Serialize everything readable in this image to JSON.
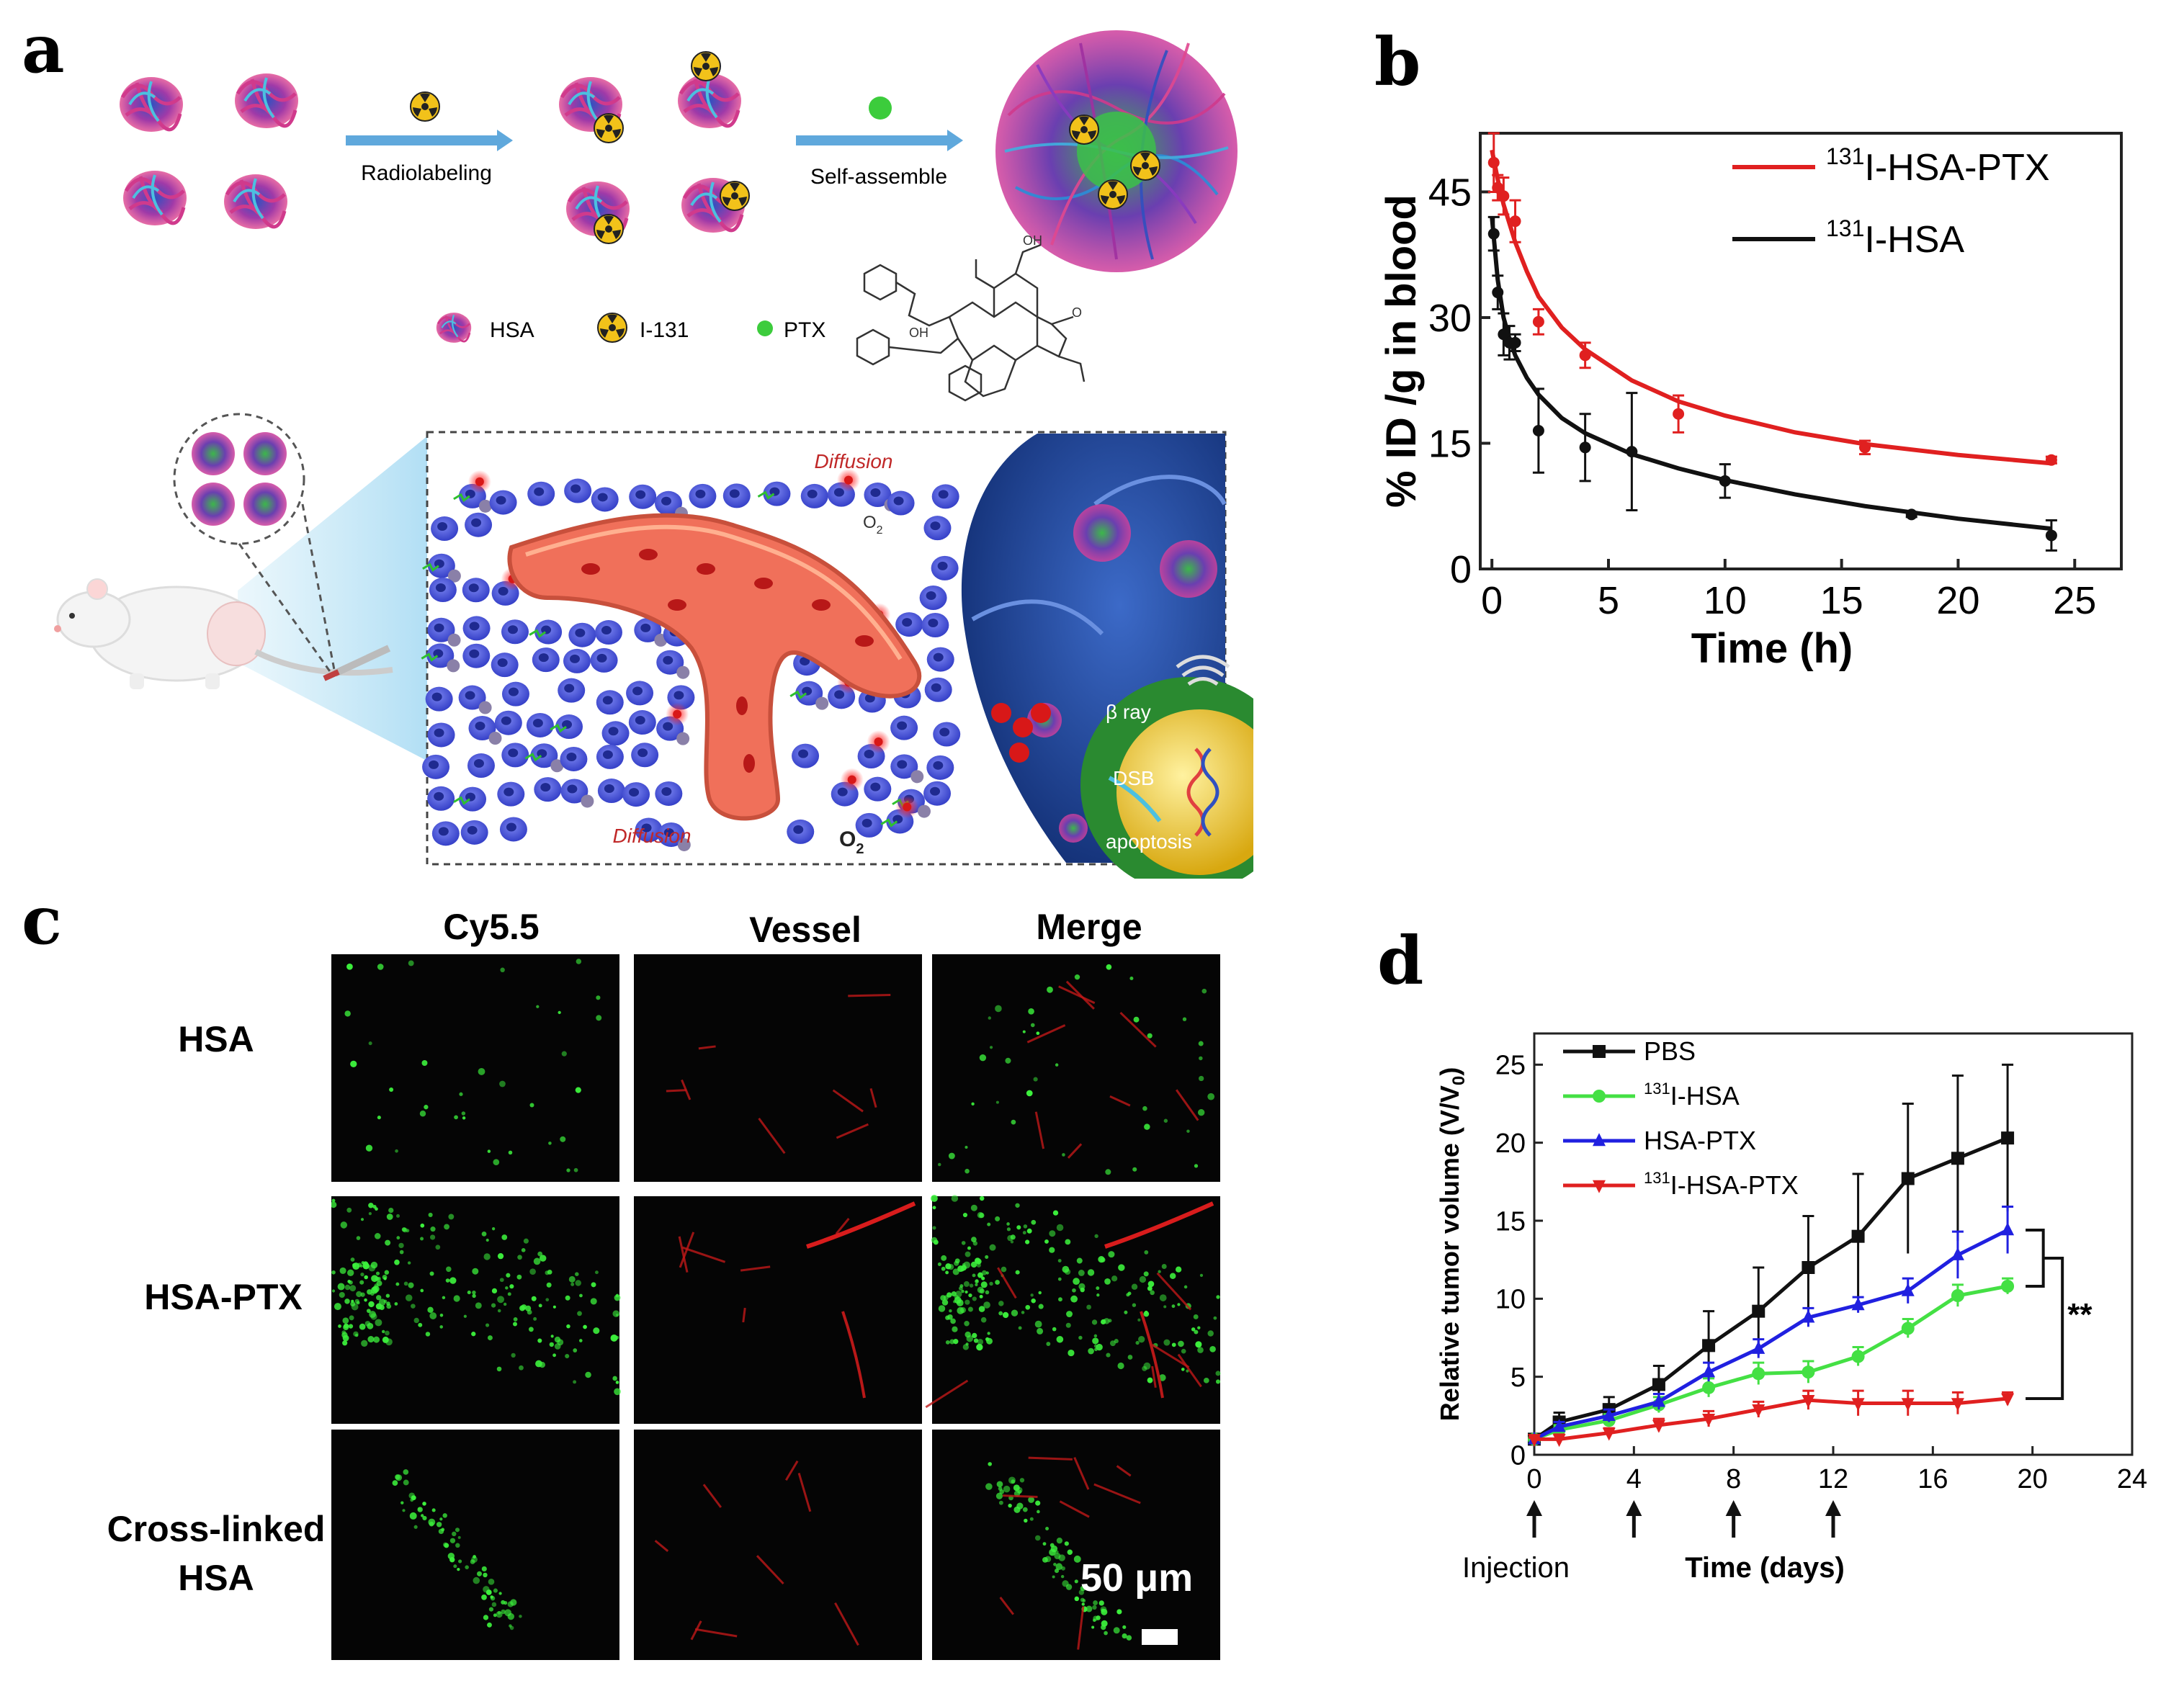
{
  "panels": {
    "a": "a",
    "b": "b",
    "c": "c",
    "d": "d"
  },
  "schematic": {
    "radiolabeling": "Radiolabeling",
    "self_assemble": "Self-assemble",
    "legend": [
      "HSA",
      "I-131",
      "PTX"
    ],
    "diffusion_top": "Diffusion",
    "diffusion_bottom": "Diffusion",
    "o2_label": "O",
    "o2_sub": "2",
    "beta_ray": "β ray",
    "dsb": "DSB",
    "apoptosis": "apoptosis",
    "colors": {
      "arrow": "#5fa8dc",
      "vessel": "#e8604c",
      "cell": "#4a55d8",
      "nucleus": "#e8c020",
      "tissue_bg": "#2a4a9c"
    }
  },
  "microscopy": {
    "columns": [
      "Cy5.5",
      "Vessel",
      "Merge"
    ],
    "rows": [
      {
        "label": "HSA"
      },
      {
        "label": "HSA-PTX"
      },
      {
        "label_line1": "Cross-linked",
        "label_line2": "HSA"
      }
    ],
    "scale_bar": "50 μm"
  },
  "chart_data": [
    {
      "panel": "b",
      "type": "line",
      "title": "",
      "xlabel": "Time (h)",
      "ylabel": "% ID /g in blood",
      "xlim": [
        -0.5,
        27
      ],
      "ylim": [
        0,
        52
      ],
      "xticks": [
        0,
        5,
        10,
        15,
        20,
        25
      ],
      "yticks": [
        0,
        15,
        30,
        45
      ],
      "legend_position": "top-right",
      "series": [
        {
          "name_sup": "131",
          "name_rest": "I-HSA-PTX",
          "color": "#e02020",
          "x": [
            0.08,
            0.25,
            0.5,
            1,
            2,
            4,
            8,
            16,
            24
          ],
          "y": [
            48.5,
            45.5,
            44.5,
            41.5,
            29.5,
            25.5,
            18.5,
            14.5,
            13
          ],
          "err": [
            3.5,
            1.5,
            2.2,
            2.5,
            1.5,
            1.5,
            2.2,
            0.8,
            0.4
          ],
          "fit_x": [
            0,
            0.25,
            0.5,
            1,
            1.5,
            2,
            3,
            4,
            6,
            8,
            10,
            13,
            16,
            20,
            24
          ],
          "fit_y": [
            50,
            46.5,
            43.5,
            39,
            35.5,
            32.5,
            28.8,
            26.2,
            22.5,
            20,
            18.3,
            16.3,
            14.9,
            13.6,
            12.6
          ]
        },
        {
          "name_sup": "131",
          "name_rest": "I-HSA",
          "color": "#111111",
          "x": [
            0.08,
            0.25,
            0.5,
            0.75,
            1,
            2,
            4,
            6,
            10,
            18,
            24
          ],
          "y": [
            40,
            33,
            28,
            27,
            27,
            16.5,
            14.5,
            14,
            10.5,
            6.5,
            4
          ],
          "err": [
            2,
            2,
            2.5,
            2,
            1,
            5,
            4,
            7,
            2,
            0.3,
            1.8
          ],
          "fit_x": [
            0,
            0.25,
            0.5,
            0.75,
            1,
            1.5,
            2,
            3,
            4,
            6,
            8,
            10,
            13,
            16,
            20,
            24
          ],
          "fit_y": [
            42,
            34.5,
            30,
            27.5,
            25.5,
            22.8,
            20.8,
            18,
            16.2,
            13.7,
            12,
            10.6,
            8.9,
            7.5,
            6,
            4.8
          ]
        }
      ]
    },
    {
      "panel": "d",
      "type": "line",
      "title": "",
      "xlabel": "Time (days)",
      "ylabel": "Relative tumor volume (V/V",
      "ylabel_sub": "0",
      "ylabel_end": ")",
      "xlim": [
        0,
        24
      ],
      "ylim": [
        0,
        27
      ],
      "xticks": [
        0,
        4,
        8,
        12,
        16,
        20,
        24
      ],
      "yticks": [
        0,
        5,
        10,
        15,
        20,
        25
      ],
      "injection_days": [
        0,
        4,
        8,
        12
      ],
      "injection_label": "Injection",
      "significance": "**",
      "legend_position": "top-left",
      "series": [
        {
          "name_sup": "",
          "name_rest": "PBS",
          "color": "#111111",
          "marker": "square",
          "x": [
            0,
            1,
            3,
            5,
            7,
            9,
            11,
            13,
            15,
            17,
            19
          ],
          "y": [
            1,
            2.1,
            2.9,
            4.5,
            7,
            9.2,
            12,
            14,
            17.7,
            19,
            20.3
          ],
          "err": [
            0.2,
            0.6,
            0.8,
            1.2,
            2.2,
            2.8,
            3.3,
            4,
            4.8,
            5.3,
            4.7
          ]
        },
        {
          "name_sup": "131",
          "name_rest": "I-HSA",
          "color": "#44e044",
          "marker": "circle",
          "x": [
            0,
            1,
            3,
            5,
            7,
            9,
            11,
            13,
            15,
            17,
            19
          ],
          "y": [
            1,
            1.6,
            2.2,
            3.2,
            4.3,
            5.2,
            5.3,
            6.3,
            8.1,
            10.2,
            10.8
          ],
          "err": [
            0.1,
            0.3,
            0.4,
            0.5,
            0.6,
            0.7,
            0.7,
            0.6,
            0.6,
            0.7,
            0.5
          ]
        },
        {
          "name_sup": "",
          "name_rest": "HSA-PTX",
          "color": "#2020e0",
          "marker": "triangle-up",
          "x": [
            0,
            1,
            3,
            5,
            7,
            9,
            11,
            13,
            15,
            17,
            19
          ],
          "y": [
            1,
            1.8,
            2.5,
            3.4,
            5.3,
            6.8,
            8.8,
            9.6,
            10.5,
            12.8,
            14.4
          ],
          "err": [
            0.1,
            0.3,
            0.4,
            0.5,
            0.6,
            0.6,
            0.6,
            0.5,
            0.8,
            1.5,
            1.5
          ]
        },
        {
          "name_sup": "131",
          "name_rest": "I-HSA-PTX",
          "color": "#e02020",
          "marker": "triangle-down",
          "x": [
            0,
            1,
            3,
            5,
            7,
            9,
            11,
            13,
            15,
            17,
            19
          ],
          "y": [
            1,
            1,
            1.4,
            1.9,
            2.3,
            2.9,
            3.5,
            3.3,
            3.3,
            3.3,
            3.6
          ],
          "err": [
            0.1,
            0.3,
            0.3,
            0.4,
            0.5,
            0.5,
            0.6,
            0.8,
            0.8,
            0.7,
            0.4
          ]
        }
      ]
    }
  ]
}
